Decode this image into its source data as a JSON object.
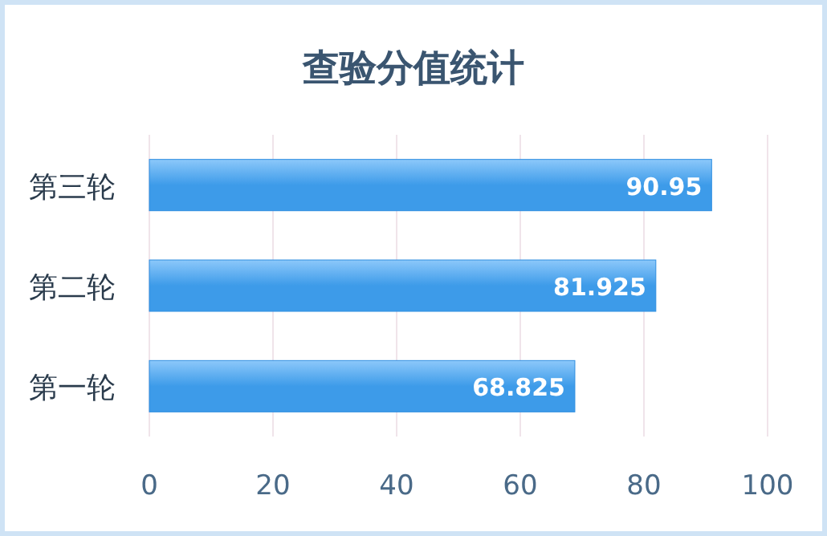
{
  "chart_data": {
    "type": "bar",
    "orientation": "horizontal",
    "title": "查验分值统计",
    "categories": [
      "第三轮",
      "第二轮",
      "第一轮"
    ],
    "values": [
      90.95,
      81.925,
      68.825
    ],
    "color": "#3d9be9",
    "xlim": [
      0,
      100
    ],
    "xticks": [
      0,
      20,
      40,
      60,
      80,
      100
    ],
    "grid": "x",
    "data_labels": true
  }
}
